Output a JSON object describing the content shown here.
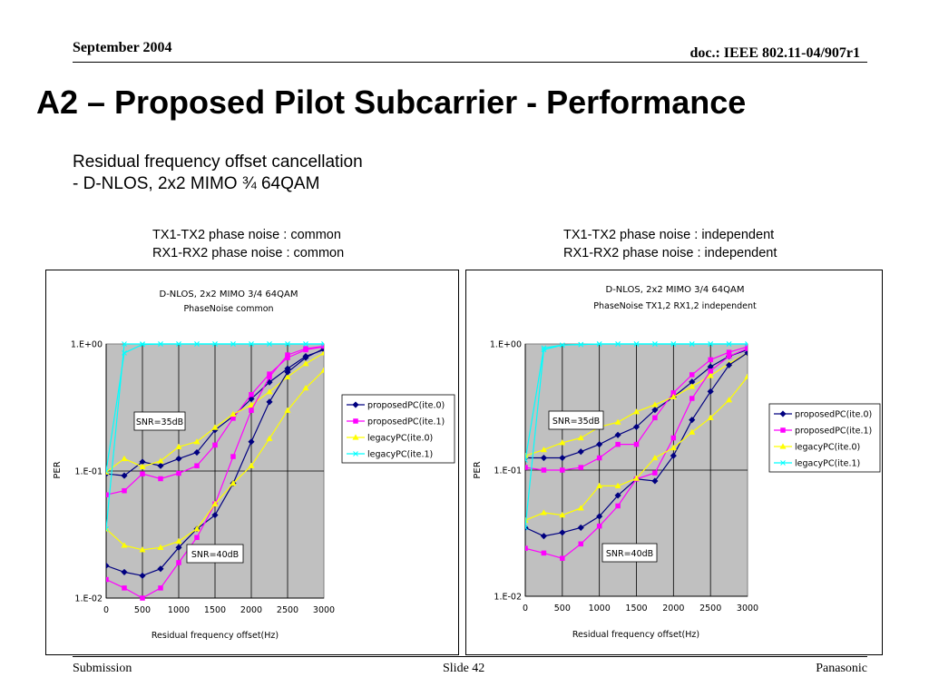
{
  "header": {
    "date": "September 2004",
    "doc": "doc.: IEEE 802.11-04/907r1"
  },
  "slide": {
    "title": "A2 – Proposed Pilot Subcarrier - Performance",
    "subtitle_line1": "Residual frequency offset cancellation",
    "subtitle_line2": "- D-NLOS, 2x2 MIMO ¾ 64QAM"
  },
  "captions": {
    "left_line1": "TX1-TX2 phase noise : common",
    "left_line2": "RX1-RX2 phase noise : common",
    "right_line1": "TX1-TX2 phase noise : independent",
    "right_line2": "RX1-RX2 phase noise : independent"
  },
  "footer": {
    "left": "Submission",
    "center": "Slide 42",
    "right": "Panasonic"
  },
  "chart_data": [
    {
      "type": "line",
      "title": "D-NLOS, 2x2 MIMO 3/4 64QAM",
      "subtitle": "PhaseNoise common",
      "xlabel": "Residual frequency offset(Hz)",
      "ylabel": "PER",
      "yscale": "log",
      "xlim": [
        0,
        3000
      ],
      "ylim": [
        0.01,
        1
      ],
      "x_ticks": [
        "0",
        "500",
        "1000",
        "1500",
        "2000",
        "2500",
        "3000"
      ],
      "y_ticks": [
        "1.E+00",
        "1.E-01",
        "1.E-02"
      ],
      "grid": true,
      "legend_position": "right",
      "annotations": [
        "SNR=35dB",
        "SNR=40dB"
      ],
      "x": [
        0,
        250,
        500,
        750,
        1000,
        1250,
        1500,
        1750,
        2000,
        2250,
        2500,
        2750,
        3000
      ],
      "series": [
        {
          "name": "proposedPC(ite.0)",
          "color": "#000080",
          "marker": "diamond",
          "group": "SNR=35dB",
          "values": [
            0.095,
            0.092,
            0.118,
            0.11,
            0.125,
            0.14,
            0.21,
            0.27,
            0.37,
            0.5,
            0.64,
            0.8,
            0.9
          ]
        },
        {
          "name": "proposedPC(ite.1)",
          "color": "#ff00ff",
          "marker": "square",
          "group": "SNR=35dB",
          "values": [
            0.065,
            0.07,
            0.095,
            0.087,
            0.096,
            0.11,
            0.16,
            0.26,
            0.4,
            0.58,
            0.78,
            0.9,
            0.95
          ]
        },
        {
          "name": "legacyPC(ite.0)",
          "color": "#ffff00",
          "marker": "triangle",
          "group": "SNR=35dB",
          "values": [
            0.098,
            0.125,
            0.108,
            0.12,
            0.155,
            0.17,
            0.22,
            0.28,
            0.33,
            0.42,
            0.55,
            0.7,
            0.85
          ]
        },
        {
          "name": "legacyPC(ite.1)",
          "color": "#00ffff",
          "marker": "x",
          "group": "SNR=35dB",
          "values": [
            0.1,
            0.85,
            0.99,
            1,
            1,
            1,
            1,
            1,
            1,
            1,
            1,
            1,
            1
          ]
        },
        {
          "name": "proposedPC(ite.0)",
          "color": "#000080",
          "marker": "diamond",
          "group": "SNR=40dB",
          "values": [
            0.018,
            0.016,
            0.015,
            0.017,
            0.025,
            0.035,
            0.045,
            0.08,
            0.17,
            0.35,
            0.6,
            0.78,
            0.92
          ]
        },
        {
          "name": "proposedPC(ite.1)",
          "color": "#ff00ff",
          "marker": "square",
          "group": "SNR=40dB",
          "values": [
            0.014,
            0.012,
            0.0095,
            0.012,
            0.019,
            0.03,
            0.055,
            0.13,
            0.3,
            0.55,
            0.82,
            0.92,
            0.96
          ]
        },
        {
          "name": "legacyPC(ite.0)",
          "color": "#ffff00",
          "marker": "triangle",
          "group": "SNR=40dB",
          "values": [
            0.035,
            0.026,
            0.024,
            0.025,
            0.028,
            0.035,
            0.055,
            0.08,
            0.11,
            0.18,
            0.3,
            0.45,
            0.62
          ]
        },
        {
          "name": "legacyPC(ite.1)",
          "color": "#00ffff",
          "marker": "x",
          "group": "SNR=40dB",
          "values": [
            0.035,
            1,
            1,
            1,
            1,
            1,
            1,
            1,
            1,
            1,
            1,
            1,
            1
          ]
        }
      ]
    },
    {
      "type": "line",
      "title": "D-NLOS, 2x2 MIMO 3/4 64QAM",
      "subtitle": "PhaseNoise TX1,2 RX1,2 independent",
      "xlabel": "Residual frequency offset(Hz)",
      "ylabel": "PER",
      "yscale": "log",
      "xlim": [
        0,
        3000
      ],
      "ylim": [
        0.01,
        1
      ],
      "x_ticks": [
        "0",
        "500",
        "1000",
        "1500",
        "2000",
        "2500",
        "3000"
      ],
      "y_ticks": [
        "1.E+00",
        "1.E-01",
        "1.E-02"
      ],
      "grid": true,
      "legend_position": "right",
      "annotations": [
        "SNR=35dB",
        "SNR=40dB"
      ],
      "x": [
        0,
        250,
        500,
        750,
        1000,
        1250,
        1500,
        1750,
        2000,
        2250,
        2500,
        2750,
        3000
      ],
      "series": [
        {
          "name": "proposedPC(ite.0)",
          "color": "#000080",
          "marker": "diamond",
          "group": "SNR=35dB",
          "values": [
            0.125,
            0.125,
            0.125,
            0.14,
            0.16,
            0.19,
            0.22,
            0.3,
            0.38,
            0.5,
            0.66,
            0.8,
            0.9
          ]
        },
        {
          "name": "proposedPC(ite.1)",
          "color": "#ff00ff",
          "marker": "square",
          "group": "SNR=35dB",
          "values": [
            0.105,
            0.1,
            0.1,
            0.105,
            0.125,
            0.16,
            0.16,
            0.26,
            0.41,
            0.57,
            0.75,
            0.86,
            0.95
          ]
        },
        {
          "name": "legacyPC(ite.0)",
          "color": "#ffff00",
          "marker": "triangle",
          "group": "SNR=35dB",
          "values": [
            0.13,
            0.145,
            0.165,
            0.18,
            0.22,
            0.24,
            0.29,
            0.33,
            0.38,
            0.46,
            0.56,
            0.7,
            0.85
          ]
        },
        {
          "name": "legacyPC(ite.1)",
          "color": "#00ffff",
          "marker": "x",
          "group": "SNR=35dB",
          "values": [
            0.12,
            0.93,
            0.98,
            0.99,
            1,
            1,
            1,
            1,
            1,
            1,
            1,
            1,
            1
          ]
        },
        {
          "name": "proposedPC(ite.0)",
          "color": "#000080",
          "marker": "diamond",
          "group": "SNR=40dB",
          "values": [
            0.035,
            0.03,
            0.032,
            0.035,
            0.043,
            0.063,
            0.085,
            0.082,
            0.13,
            0.25,
            0.42,
            0.68,
            0.85
          ]
        },
        {
          "name": "proposedPC(ite.1)",
          "color": "#ff00ff",
          "marker": "square",
          "group": "SNR=40dB",
          "values": [
            0.024,
            0.022,
            0.02,
            0.026,
            0.036,
            0.052,
            0.085,
            0.095,
            0.18,
            0.37,
            0.61,
            0.8,
            0.92
          ]
        },
        {
          "name": "legacyPC(ite.0)",
          "color": "#ffff00",
          "marker": "triangle",
          "group": "SNR=40dB",
          "values": [
            0.04,
            0.046,
            0.044,
            0.05,
            0.075,
            0.075,
            0.086,
            0.125,
            0.15,
            0.2,
            0.26,
            0.36,
            0.55
          ]
        },
        {
          "name": "legacyPC(ite.1)",
          "color": "#00ffff",
          "marker": "x",
          "group": "SNR=40dB",
          "values": [
            0.035,
            0.9,
            0.98,
            0.99,
            1,
            1,
            1,
            1,
            1,
            1,
            1,
            1,
            1
          ]
        }
      ]
    }
  ]
}
